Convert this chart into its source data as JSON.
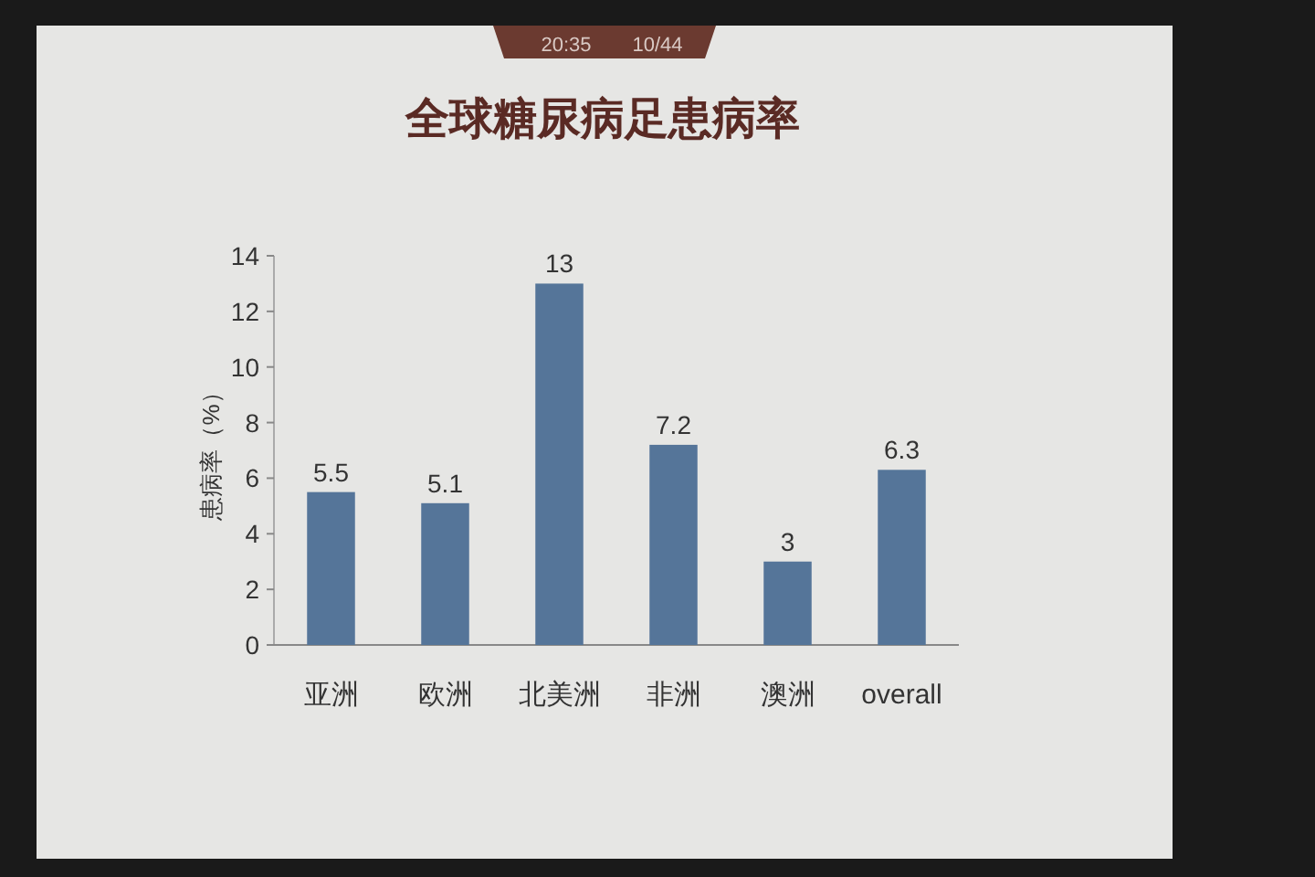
{
  "chart_data": {
    "type": "bar",
    "title": "全球糖尿病足患病率",
    "ylabel": "患病率（%）",
    "categories": [
      "亚洲",
      "欧洲",
      "北美洲",
      "非洲",
      "澳洲",
      "overall"
    ],
    "values": [
      5.5,
      5.1,
      13,
      7.2,
      3,
      6.3
    ],
    "color": "#557599",
    "ylim": [
      0,
      14
    ],
    "yticks": [
      0,
      2,
      4,
      6,
      8,
      10,
      12,
      14
    ],
    "data_labels": true,
    "annotations": [
      "20:35",
      "10/44"
    ]
  }
}
